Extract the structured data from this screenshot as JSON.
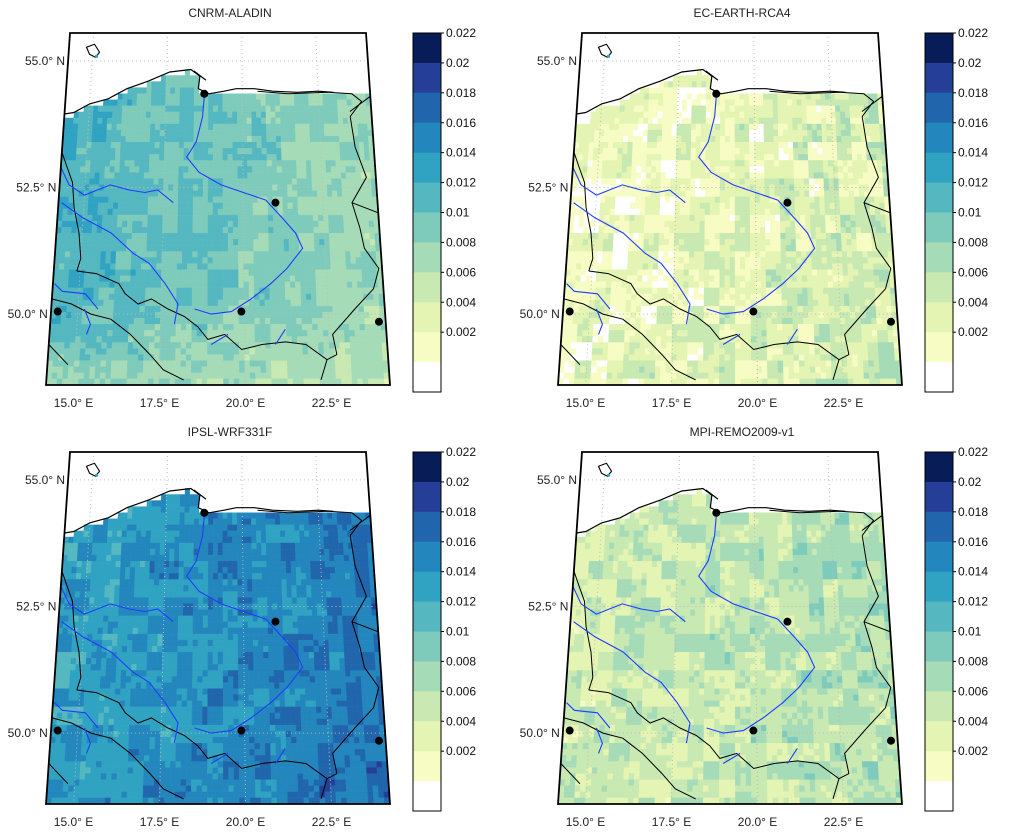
{
  "chart_data": [
    {
      "type": "heatmap",
      "title": "CNRM-ALADIN",
      "lat_ticks": [
        "55.0° N",
        "52.5° N",
        "50.0° N"
      ],
      "lon_ticks": [
        "15.0° E",
        "17.5° E",
        "20.0° E",
        "22.5° E"
      ],
      "colorbar_ticks": [
        "0.022",
        "0.02",
        "0.018",
        "0.016",
        "0.014",
        "0.012",
        "0.01",
        "0.008",
        "0.006",
        "0.004",
        "0.002"
      ],
      "value_range": [
        0,
        0.022
      ],
      "field": {
        "base": 0.0115,
        "west_boost": 0.002,
        "south_drop": 0.003,
        "noise": 0.0018,
        "white_threshold": 0.0
      }
    },
    {
      "type": "heatmap",
      "title": "EC-EARTH-RCA4",
      "lat_ticks": [
        "55.0° N",
        "52.5° N",
        "50.0° N"
      ],
      "lon_ticks": [
        "15.0° E",
        "17.5° E",
        "20.0° E",
        "22.5° E"
      ],
      "colorbar_ticks": [
        "0.022",
        "0.02",
        "0.018",
        "0.016",
        "0.014",
        "0.012",
        "0.01",
        "0.008",
        "0.006",
        "0.004",
        "0.002"
      ],
      "value_range": [
        0,
        0.022
      ],
      "field": {
        "base": 0.0045,
        "west_boost": -0.0015,
        "south_drop": -0.001,
        "noise": 0.0035,
        "white_threshold": 0.002
      }
    },
    {
      "type": "heatmap",
      "title": "IPSL-WRF331F",
      "lat_ticks": [
        "55.0° N",
        "52.5° N",
        "50.0° N"
      ],
      "lon_ticks": [
        "15.0° E",
        "17.5° E",
        "20.0° E",
        "22.5° E"
      ],
      "colorbar_ticks": [
        "0.022",
        "0.02",
        "0.018",
        "0.016",
        "0.014",
        "0.012",
        "0.01",
        "0.008",
        "0.006",
        "0.004",
        "0.002"
      ],
      "value_range": [
        0,
        0.022
      ],
      "field": {
        "base": 0.0165,
        "west_boost": -0.0015,
        "south_drop": -0.001,
        "noise": 0.0022,
        "white_threshold": 0.0
      }
    },
    {
      "type": "heatmap",
      "title": "MPI-REMO2009-v1",
      "lat_ticks": [
        "55.0° N",
        "52.5° N",
        "50.0° N"
      ],
      "lon_ticks": [
        "15.0° E",
        "17.5° E",
        "20.0° E",
        "22.5° E"
      ],
      "colorbar_ticks": [
        "0.022",
        "0.02",
        "0.018",
        "0.016",
        "0.014",
        "0.012",
        "0.01",
        "0.008",
        "0.006",
        "0.004",
        "0.002"
      ],
      "value_range": [
        0,
        0.022
      ],
      "field": {
        "base": 0.0075,
        "west_boost": -0.001,
        "south_drop": 0.0005,
        "noise": 0.0028,
        "white_threshold": 0.002
      }
    }
  ],
  "colors": {
    "colormap": [
      "#ffffff",
      "#f7fcc4",
      "#e4f4b3",
      "#c8e9b1",
      "#a6dbb8",
      "#7fcbbb",
      "#55b8c1",
      "#30a2c2",
      "#2386bd",
      "#2166ac",
      "#253f99",
      "#081d58"
    ],
    "border": "#000000",
    "river": "#1f3dff",
    "grid": "#bbbbbb"
  }
}
